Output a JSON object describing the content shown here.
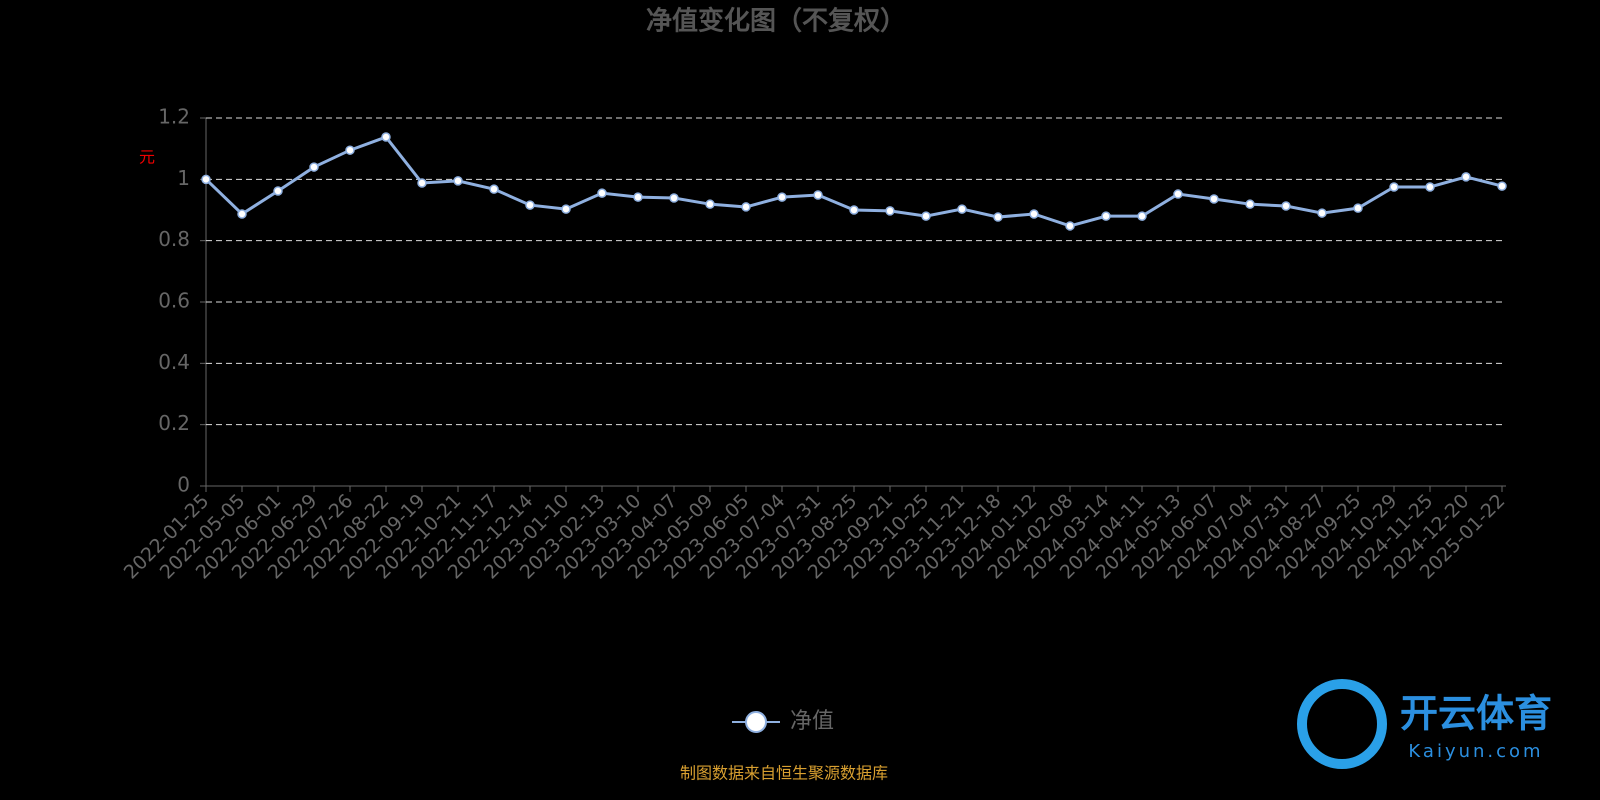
{
  "chart_data": {
    "type": "line",
    "title": "净值变化图（不复权）",
    "y_axis_label": "元",
    "categories": [
      "2022-01-25",
      "2022-05-05",
      "2022-06-01",
      "2022-06-29",
      "2022-07-26",
      "2022-08-22",
      "2022-09-19",
      "2022-10-21",
      "2022-11-17",
      "2022-12-14",
      "2023-01-10",
      "2023-02-13",
      "2023-03-10",
      "2023-04-07",
      "2023-05-09",
      "2023-06-05",
      "2023-07-04",
      "2023-07-31",
      "2023-08-25",
      "2023-09-21",
      "2023-10-25",
      "2023-11-21",
      "2023-12-18",
      "2024-01-12",
      "2024-02-08",
      "2024-03-14",
      "2024-04-11",
      "2024-05-13",
      "2024-06-07",
      "2024-07-04",
      "2024-07-31",
      "2024-08-27",
      "2024-09-25",
      "2024-10-29",
      "2024-11-25",
      "2024-12-20",
      "2025-01-22"
    ],
    "series": [
      {
        "name": "净值",
        "color": "#8fb0e0",
        "values": [
          1.0,
          0.887,
          0.962,
          1.04,
          1.095,
          1.138,
          0.988,
          0.995,
          0.968,
          0.916,
          0.903,
          0.955,
          0.942,
          0.939,
          0.919,
          0.91,
          0.942,
          0.949,
          0.9,
          0.897,
          0.88,
          0.903,
          0.877,
          0.887,
          0.848,
          0.88,
          0.88,
          0.952,
          0.936,
          0.919,
          0.913,
          0.89,
          0.906,
          0.975,
          0.975,
          1.008,
          0.978
        ]
      }
    ],
    "ylim": [
      0,
      1.2
    ],
    "yticks": [
      0,
      0.2,
      0.4,
      0.6,
      0.8,
      1,
      1.2
    ],
    "grid": true,
    "source": "制图数据来自恒生聚源数据库"
  },
  "watermark": {
    "brand": "开云体育",
    "url": "Kaiyun.com"
  }
}
